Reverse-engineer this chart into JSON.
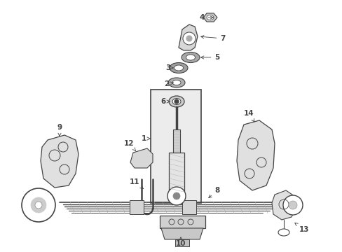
{
  "bg_color": "#ffffff",
  "lc": "#444444",
  "fig_w": 4.89,
  "fig_h": 3.6,
  "dpi": 100
}
